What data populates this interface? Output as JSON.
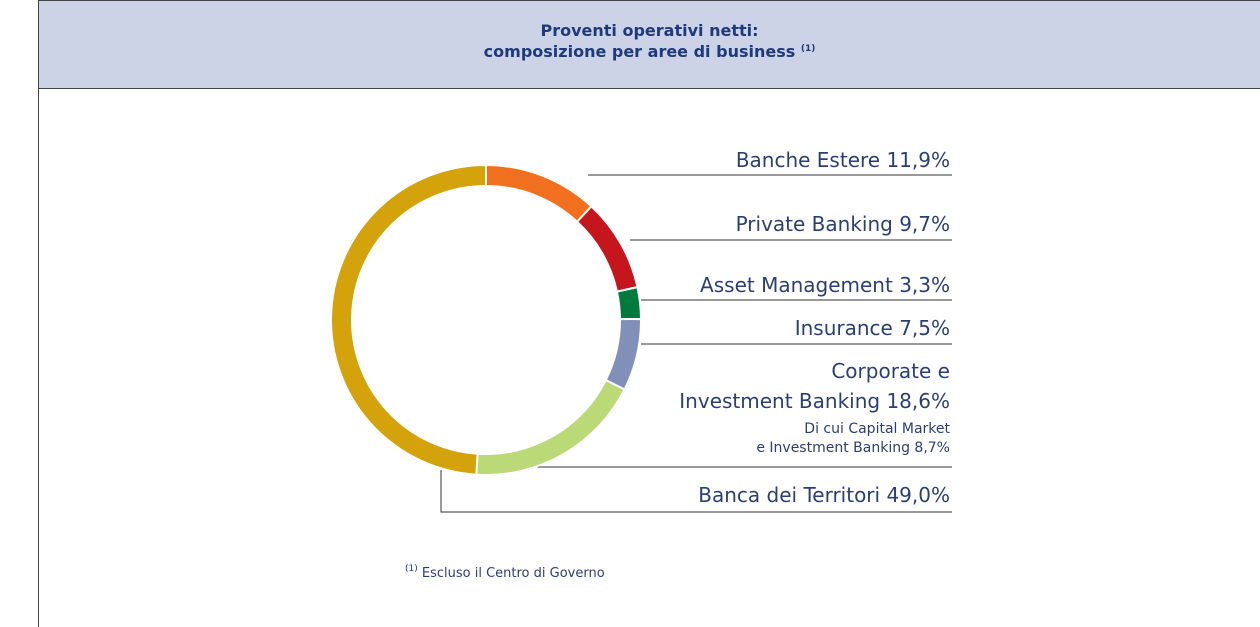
{
  "chart_data": {
    "type": "donut",
    "title": "Proventi operativi netti:\ncomposizione per aree di business",
    "title_note": "(1)",
    "categories": [
      "Banche Estere",
      "Private Banking",
      "Asset Management",
      "Insurance",
      "Corporate e\nInvestment Banking",
      "Banca dei Territori"
    ],
    "values": [
      11.9,
      9.7,
      3.3,
      7.5,
      18.6,
      49.0
    ],
    "value_labels": [
      "11,9%",
      "9,7%",
      "3,3%",
      "7,5%",
      "18,6%",
      "49,0%"
    ],
    "colors": [
      "#f07020",
      "#c4161c",
      "#007a3d",
      "#8090b8",
      "#bcd977",
      "#d4a20a"
    ],
    "annotation": {
      "text": "Di cui Capital Market\ne Investment Banking",
      "value": 8.7,
      "value_label": "8,7%"
    },
    "footnote": {
      "marker": "(1)",
      "text": "Escluso il Centro di Governo"
    }
  }
}
